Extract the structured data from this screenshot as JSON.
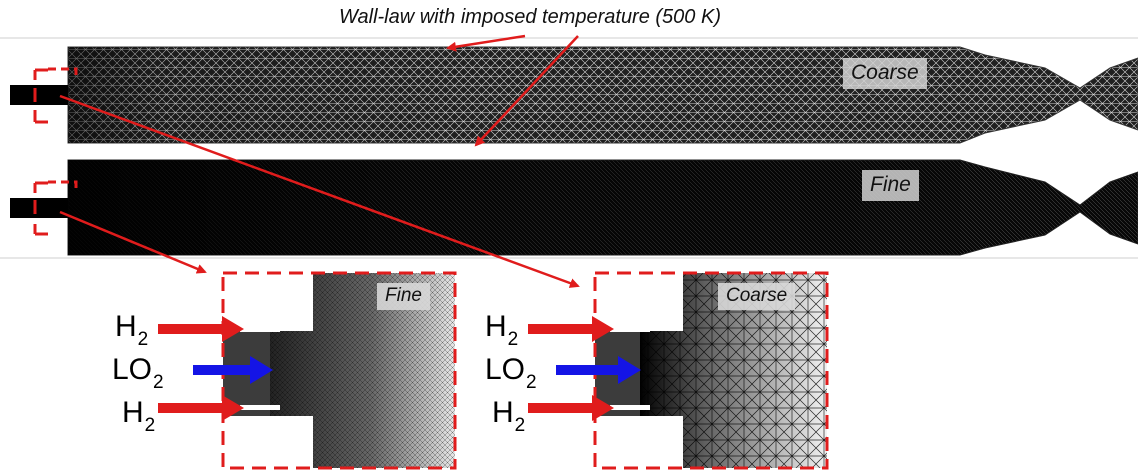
{
  "annotation": {
    "wall_law_text": "Wall-law with imposed temperature (500 K)"
  },
  "meshes": {
    "coarse_label": "Coarse",
    "fine_label": "Fine"
  },
  "zoom_panels": {
    "fine": {
      "label": "Fine",
      "inlets": [
        {
          "base": "H",
          "sub": "2"
        },
        {
          "base": "LO",
          "sub": "2"
        },
        {
          "base": "H",
          "sub": "2"
        }
      ]
    },
    "coarse": {
      "label": "Coarse",
      "inlets": [
        {
          "base": "H",
          "sub": "2"
        },
        {
          "base": "LO",
          "sub": "2"
        },
        {
          "base": "H",
          "sub": "2"
        }
      ]
    }
  },
  "colors": {
    "highlight_red": "#e01c1c",
    "oxidizer_blue": "#1414e6",
    "mesh_dark": "#000000"
  }
}
